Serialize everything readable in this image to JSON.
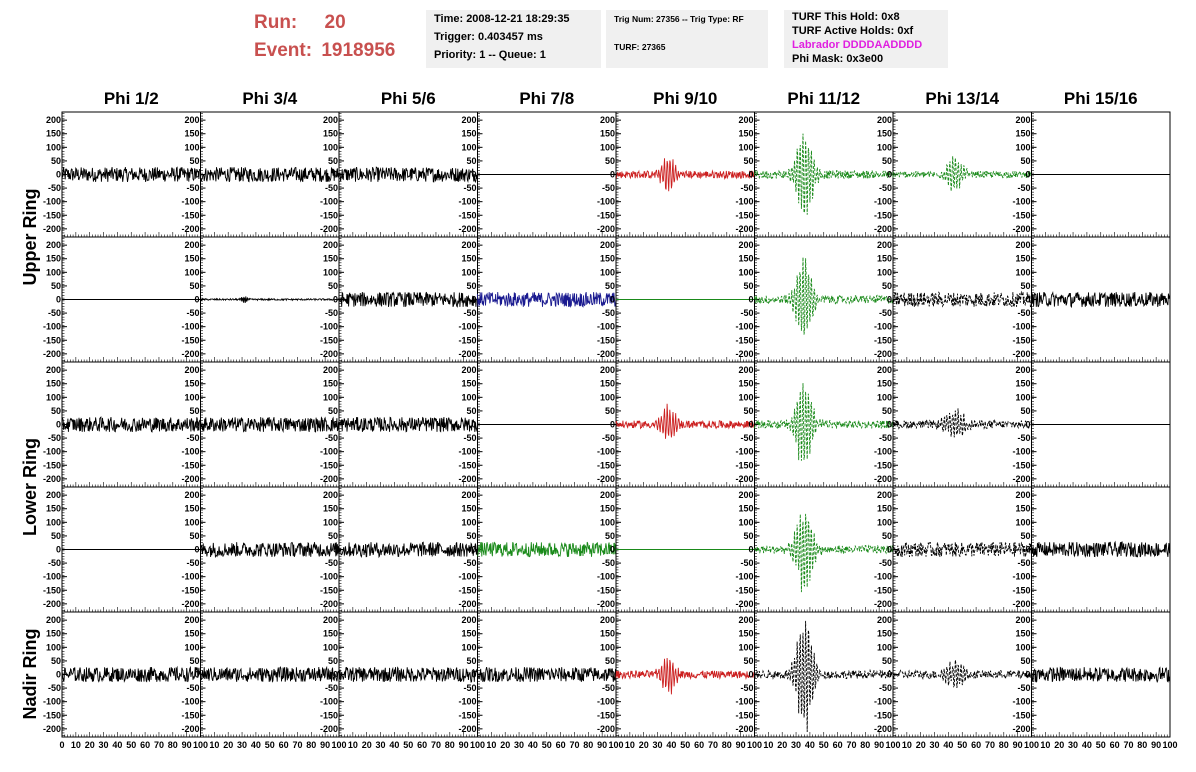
{
  "header": {
    "run_label": "Run:",
    "run_value": "20",
    "event_label": "Event:",
    "event_value": "1918956"
  },
  "info_boxes": [
    {
      "lines": [
        {
          "text": "Time: 2008-12-21 18:29:35",
          "style": "normal"
        },
        {
          "text": "Trigger: 0.403457 ms",
          "style": "normal"
        },
        {
          "text": "Priority: 1 -- Queue: 1",
          "style": "normal"
        }
      ]
    },
    {
      "lines": [
        {
          "text": "Trig Num: 27356 -- Trig Type: RF",
          "style": "small"
        },
        {
          "text": "",
          "style": "small"
        },
        {
          "text": "TURF: 27365",
          "style": "small"
        }
      ]
    },
    {
      "lines": [
        {
          "text": "TURF This Hold: 0x8",
          "style": "normal"
        },
        {
          "text": "TURF Active Holds: 0xf",
          "style": "normal"
        },
        {
          "text": "Labrador DDDDAADDDD",
          "style": "magenta"
        },
        {
          "text": "Phi Mask: 0x3e00",
          "style": "normal"
        }
      ]
    }
  ],
  "chart_data": {
    "type": "line",
    "column_titles": [
      "Phi 1/2",
      "Phi 3/4",
      "Phi 5/6",
      "Phi 7/8",
      "Phi 9/10",
      "Phi 11/12",
      "Phi 13/14",
      "Phi 15/16"
    ],
    "ring_titles": [
      "Upper Ring",
      "Lower Ring",
      "Nadir Ring"
    ],
    "ylim": [
      -230,
      230
    ],
    "yticks": [
      200,
      150,
      100,
      50,
      0,
      -50,
      -100,
      -150,
      -200
    ],
    "xlim": [
      0,
      100
    ],
    "xticks": [
      0,
      10,
      20,
      30,
      40,
      50,
      60,
      70,
      80,
      90,
      100
    ],
    "xtick_labels_first": [
      "0",
      "10",
      "20",
      "30",
      "40",
      "50",
      "60",
      "70",
      "80",
      "90",
      "100"
    ],
    "xtick_labels_other": [
      "10",
      "20",
      "30",
      "40",
      "50",
      "60",
      "70",
      "80",
      "90",
      "100"
    ],
    "colors": {
      "black": "#000000",
      "red": "#cc2020",
      "green": "#1a8a1a",
      "blue": "#1a1a90"
    },
    "waveform_rows": [
      [
        "noise-black",
        "noise-black",
        "noise-black",
        "flat-black",
        "pulse-red",
        "pulse-green-dashed",
        "pulse-green-dashed-small",
        "flat-black"
      ],
      [
        "flat-black",
        "small-black",
        "noise-black",
        "noise-blue",
        "flat-green",
        "pulse-green-dashed",
        "noise-black-dashed",
        "noise-black"
      ],
      [
        "noise-black",
        "noise-black",
        "noise-black",
        "flat-black",
        "pulse-red",
        "pulse-green-dashed",
        "pulse-black-dashed-small",
        "flat-black"
      ],
      [
        "flat-black",
        "noise-black",
        "noise-black",
        "noise-green",
        "flat-green",
        "pulse-green-dashed",
        "noise-black-dashed",
        "noise-black"
      ],
      [
        "noise-black",
        "noise-black",
        "noise-black",
        "noise-black",
        "pulse-red",
        "pulse-black-dashed-big",
        "pulse-black-dashed-small",
        "noise-black"
      ]
    ]
  }
}
